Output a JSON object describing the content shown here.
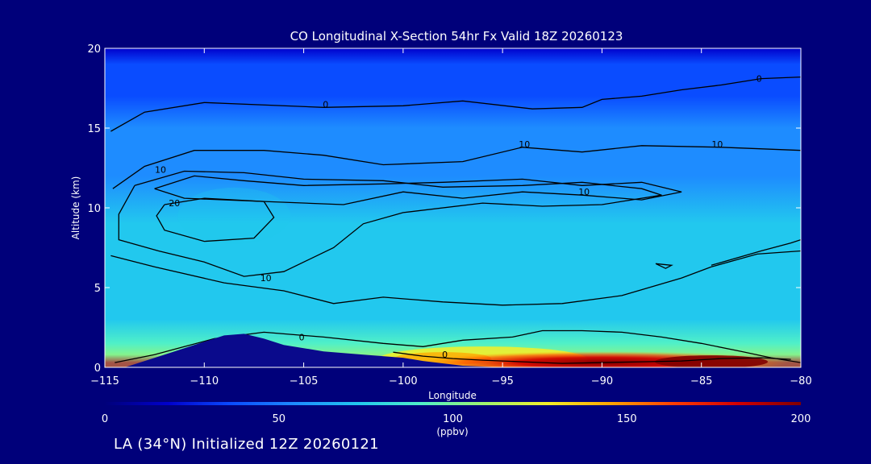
{
  "chart_data": {
    "type": "heatmap",
    "title": "CO Longitudinal X-Section 54hr  Fx Valid 18Z 20260123",
    "xlabel": "Longitude",
    "ylabel": "Altitude (km)",
    "xlim": [
      -115,
      -80
    ],
    "ylim": [
      0,
      20
    ],
    "x_ticks": [
      -115,
      -110,
      -105,
      -100,
      -95,
      -90,
      -85,
      -80
    ],
    "x_tick_labels": [
      "−115",
      "−110",
      "−105",
      "−100",
      "−95",
      "−90",
      "−85",
      "−80"
    ],
    "y_ticks": [
      0,
      5,
      10,
      15,
      20
    ],
    "y_tick_labels": [
      "0",
      "5",
      "10",
      "15",
      "20"
    ],
    "variable": "CO",
    "units": "(ppbv)",
    "colorbar": {
      "min": 0,
      "max": 200,
      "ticks": [
        0,
        50,
        100,
        150,
        200
      ],
      "tick_labels": [
        "0",
        "50",
        "100",
        "150",
        "200"
      ],
      "colors": [
        "#00007a",
        "#0000cc",
        "#0a4cff",
        "#1e8cff",
        "#22c8ee",
        "#50f0c8",
        "#a0f56e",
        "#f5f028",
        "#ffa500",
        "#ff3c00",
        "#d20000",
        "#800000"
      ]
    },
    "field": {
      "description": "CO mixing ratio (ppbv) by longitude and altitude",
      "layers": [
        {
          "altitude_km": 19,
          "value_ppbv": 28
        },
        {
          "altitude_km": 17,
          "value_ppbv": 40
        },
        {
          "altitude_km": 15,
          "value_ppbv": 48
        },
        {
          "altitude_km": 12,
          "value_ppbv": 56
        },
        {
          "altitude_km": 9,
          "value_ppbv": 64
        },
        {
          "altitude_km": 6,
          "value_ppbv": 70
        },
        {
          "altitude_km": 3,
          "value_ppbv": 78
        },
        {
          "altitude_km": 1.5,
          "value_ppbv": 88
        },
        {
          "altitude_km": 0.8,
          "value_ppbv": 115
        },
        {
          "altitude_km": 0.3,
          "value_ppbv": 175
        }
      ],
      "surface_max": {
        "longitude": -90,
        "altitude_km": 0.3,
        "value_ppbv": 200
      }
    },
    "contour_labels": [
      {
        "text": "0",
        "lon": -103.9,
        "alt": 16.3
      },
      {
        "text": "0",
        "lon": -82.1,
        "alt": 17.9
      },
      {
        "text": "10",
        "lon": -93.9,
        "alt": 13.8
      },
      {
        "text": "10",
        "lon": -84.2,
        "alt": 13.8
      },
      {
        "text": "10",
        "lon": -112.2,
        "alt": 12.2
      },
      {
        "text": "10",
        "lon": -90.9,
        "alt": 10.8
      },
      {
        "text": "10",
        "lon": -106.9,
        "alt": 5.4
      },
      {
        "text": "20",
        "lon": -111.5,
        "alt": 10.1
      },
      {
        "text": "0",
        "lon": -105.1,
        "alt": 1.7
      },
      {
        "text": "0",
        "lon": -97.9,
        "alt": 0.6
      }
    ],
    "terrain": {
      "description": "Rocky Mountains topography",
      "points": [
        [
          -115,
          0
        ],
        [
          -114,
          0
        ],
        [
          -112,
          0.8
        ],
        [
          -110,
          1.6
        ],
        [
          -109,
          2.0
        ],
        [
          -108,
          2.1
        ],
        [
          -107,
          1.8
        ],
        [
          -106,
          1.4
        ],
        [
          -105,
          1.2
        ],
        [
          -104,
          1.0
        ],
        [
          -102,
          0.8
        ],
        [
          -100,
          0.6
        ],
        [
          -99,
          0.4
        ],
        [
          -97,
          0.1
        ],
        [
          -95,
          0
        ],
        [
          -80,
          0
        ]
      ]
    }
  },
  "footer": {
    "caption": "LA (34°N) Initialized 12Z 20260121"
  }
}
